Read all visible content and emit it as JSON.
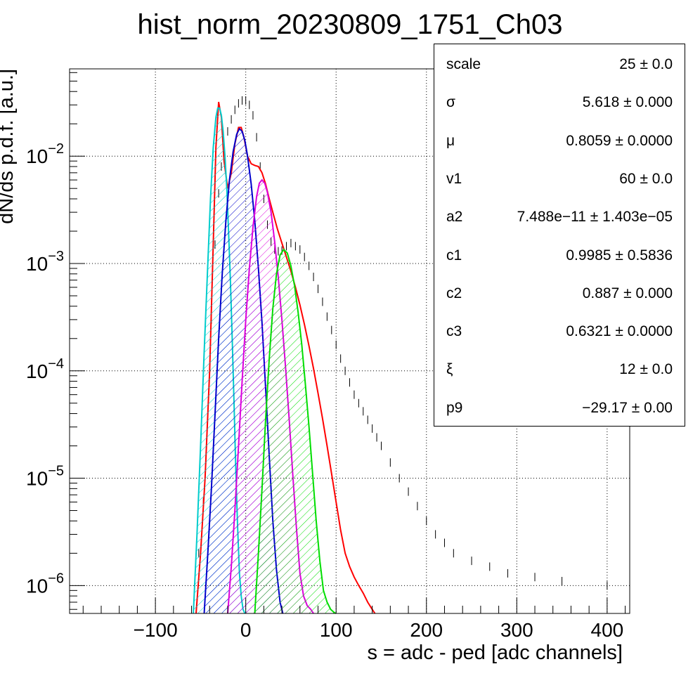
{
  "chart_data": {
    "type": "line",
    "title": "hist_norm_20230809_1751_Ch03",
    "xlabel": "s = adc - ped [adc channels]",
    "ylabel": "dN/ds p.d.f. [a.u.]",
    "xlim": [
      -195,
      425
    ],
    "ylim": [
      5.5e-07,
      0.065
    ],
    "y_scale": "log",
    "grid": true,
    "x_ticks": [
      -100,
      0,
      100,
      200,
      300,
      400
    ],
    "x_tick_labels": [
      "−100",
      "0",
      "100",
      "200",
      "300",
      "400"
    ],
    "y_ticks": [
      {
        "value": 1e-06,
        "base": "10",
        "exp": "−6"
      },
      {
        "value": 1e-05,
        "base": "10",
        "exp": "−5"
      },
      {
        "value": 0.0001,
        "base": "10",
        "exp": "−4"
      },
      {
        "value": 0.001,
        "base": "10",
        "exp": "−3"
      },
      {
        "value": 0.01,
        "base": "10",
        "exp": "−2"
      }
    ],
    "series": [
      {
        "color": "#000000",
        "style": "data-points",
        "x": [
          -57,
          -52,
          -47,
          -42,
          -38,
          -34,
          -30,
          -27,
          -24,
          -20,
          -16,
          -12,
          -8,
          -4,
          0,
          4,
          8,
          12,
          16,
          20,
          24,
          28,
          32,
          36,
          40,
          45,
          50,
          55,
          60,
          65,
          70,
          75,
          80,
          85,
          90,
          95,
          100,
          105,
          110,
          115,
          120,
          125,
          130,
          135,
          140,
          145,
          150,
          160,
          170,
          180,
          190,
          200,
          210,
          220,
          230,
          250,
          270,
          290,
          320,
          350,
          400
        ],
        "y": [
          8e-07,
          2e-06,
          6e-06,
          4e-05,
          0.0003,
          0.0015,
          0.0045,
          0.008,
          0.012,
          0.017,
          0.022,
          0.027,
          0.031,
          0.033,
          0.033,
          0.03,
          0.024,
          0.015,
          0.008,
          0.004,
          0.0023,
          0.0016,
          0.00135,
          0.0013,
          0.00132,
          0.00145,
          0.00155,
          0.00145,
          0.00135,
          0.00115,
          0.00095,
          0.00075,
          0.00058,
          0.00044,
          0.00032,
          0.00024,
          0.000175,
          0.00013,
          0.0001,
          7.8e-05,
          6e-05,
          5e-05,
          4.2e-05,
          3.5e-05,
          2.9e-05,
          2.4e-05,
          2e-05,
          1.4e-05,
          1e-05,
          7.5e-06,
          5.5e-06,
          4e-06,
          3e-06,
          2.5e-06,
          2e-06,
          1.7e-06,
          1.5e-06,
          1.3e-06,
          1.2e-06,
          1.1e-06,
          1e-06
        ]
      },
      {
        "color": "#ff0000",
        "style": "line",
        "x": [
          -55,
          -50,
          -45,
          -40,
          -36,
          -33,
          -30,
          -27,
          -24,
          -20,
          -16,
          -12,
          -8,
          -5,
          -2,
          2,
          6,
          10,
          14,
          18,
          22,
          26,
          30,
          35,
          40,
          45,
          50,
          55,
          60,
          65,
          70,
          75,
          80,
          85,
          90,
          95,
          100,
          105,
          110,
          115,
          120,
          125,
          130,
          135,
          140,
          143
        ],
        "y": [
          5.5e-07,
          2e-06,
          1e-05,
          0.0001,
          0.0015,
          0.012,
          0.032,
          0.023,
          0.009,
          0.005,
          0.007,
          0.013,
          0.0185,
          0.0185,
          0.015,
          0.01,
          0.0085,
          0.0082,
          0.008,
          0.007,
          0.0055,
          0.004,
          0.003,
          0.0021,
          0.00155,
          0.00115,
          0.00085,
          0.0006,
          0.00041,
          0.00027,
          0.00017,
          0.000105,
          6.2e-05,
          3.6e-05,
          2e-05,
          1.1e-05,
          6e-06,
          3.3e-06,
          2e-06,
          1.5e-06,
          1.2e-06,
          1e-06,
          8.5e-07,
          7e-07,
          6e-07,
          5.5e-07
        ]
      },
      {
        "color": "#00cccc",
        "style": "hatched-area",
        "x": [
          -58,
          -54,
          -50,
          -46,
          -42,
          -39,
          -36,
          -33,
          -31,
          -29,
          -27,
          -25,
          -23,
          -21,
          -19,
          -17,
          -15,
          -13,
          -11,
          -9,
          -7,
          -5,
          -3,
          -1
        ],
        "y": [
          5.5e-07,
          3e-06,
          2e-05,
          0.00015,
          0.001,
          0.004,
          0.012,
          0.023,
          0.028,
          0.028,
          0.024,
          0.017,
          0.01,
          0.005,
          0.002,
          0.0007,
          0.0002,
          5e-05,
          1.2e-05,
          3.5e-06,
          1.3e-06,
          8e-07,
          6e-07,
          5.5e-07
        ]
      },
      {
        "color": "#0000cc",
        "style": "hatched-area",
        "x": [
          -46,
          -42,
          -38,
          -34,
          -30,
          -26,
          -22,
          -18,
          -14,
          -10,
          -7,
          -4,
          -1,
          2,
          6,
          10,
          14,
          18,
          22,
          26,
          30,
          34,
          38,
          41
        ],
        "y": [
          5.5e-07,
          2e-06,
          8e-06,
          4e-05,
          0.0002,
          0.0008,
          0.0025,
          0.006,
          0.011,
          0.016,
          0.018,
          0.017,
          0.014,
          0.01,
          0.0055,
          0.0025,
          0.0009,
          0.00028,
          7e-05,
          1.6e-05,
          4e-06,
          1.4e-06,
          7e-07,
          5.5e-07
        ]
      },
      {
        "color": "#dd00dd",
        "style": "hatched-area",
        "x": [
          -20,
          -16,
          -12,
          -8,
          -4,
          0,
          4,
          8,
          12,
          15,
          18,
          21,
          24,
          28,
          32,
          36,
          40,
          44,
          48,
          52,
          56,
          60,
          64,
          68,
          72,
          75
        ],
        "y": [
          5.5e-07,
          1.5e-06,
          5e-06,
          2e-05,
          8e-05,
          0.0003,
          0.0009,
          0.0022,
          0.0042,
          0.0056,
          0.006,
          0.0056,
          0.0046,
          0.003,
          0.0016,
          0.00075,
          0.0003,
          0.00011,
          3.6e-05,
          1.1e-05,
          3.5e-06,
          1.3e-06,
          8e-07,
          6.5e-07,
          6e-07,
          5.5e-07
        ]
      },
      {
        "color": "#00dd00",
        "style": "hatched-area",
        "x": [
          10,
          14,
          18,
          22,
          26,
          30,
          34,
          38,
          42,
          46,
          50,
          54,
          58,
          62,
          66,
          70,
          74,
          78,
          82,
          86,
          90,
          94,
          98,
          100
        ],
        "y": [
          5.5e-07,
          2e-06,
          8e-06,
          3.5e-05,
          0.00013,
          0.00038,
          0.0008,
          0.0012,
          0.00135,
          0.00125,
          0.00095,
          0.00062,
          0.00035,
          0.000175,
          7.5e-05,
          3e-05,
          1.1e-05,
          4e-06,
          1.7e-06,
          9e-07,
          7e-07,
          6e-07,
          5.6e-07,
          5.5e-07
        ]
      }
    ]
  },
  "stats": [
    {
      "name": "scale",
      "value": "25 ± 0.0"
    },
    {
      "name": "σ",
      "value": "5.618 ± 0.000"
    },
    {
      "name": "μ",
      "value": "0.8059 ± 0.0000"
    },
    {
      "name": "v1",
      "value": "60 ± 0.0"
    },
    {
      "name": "a2",
      "value": "7.488e−11 ± 1.403e−05"
    },
    {
      "name": "c1",
      "value": "0.9985 ± 0.5836"
    },
    {
      "name": "c2",
      "value": "0.887 ± 0.000"
    },
    {
      "name": "c3",
      "value": "0.6321 ± 0.0000"
    },
    {
      "name": "ξ",
      "value": "12 ± 0.0"
    },
    {
      "name": "p9",
      "value": "−29.17 ± 0.00"
    }
  ]
}
